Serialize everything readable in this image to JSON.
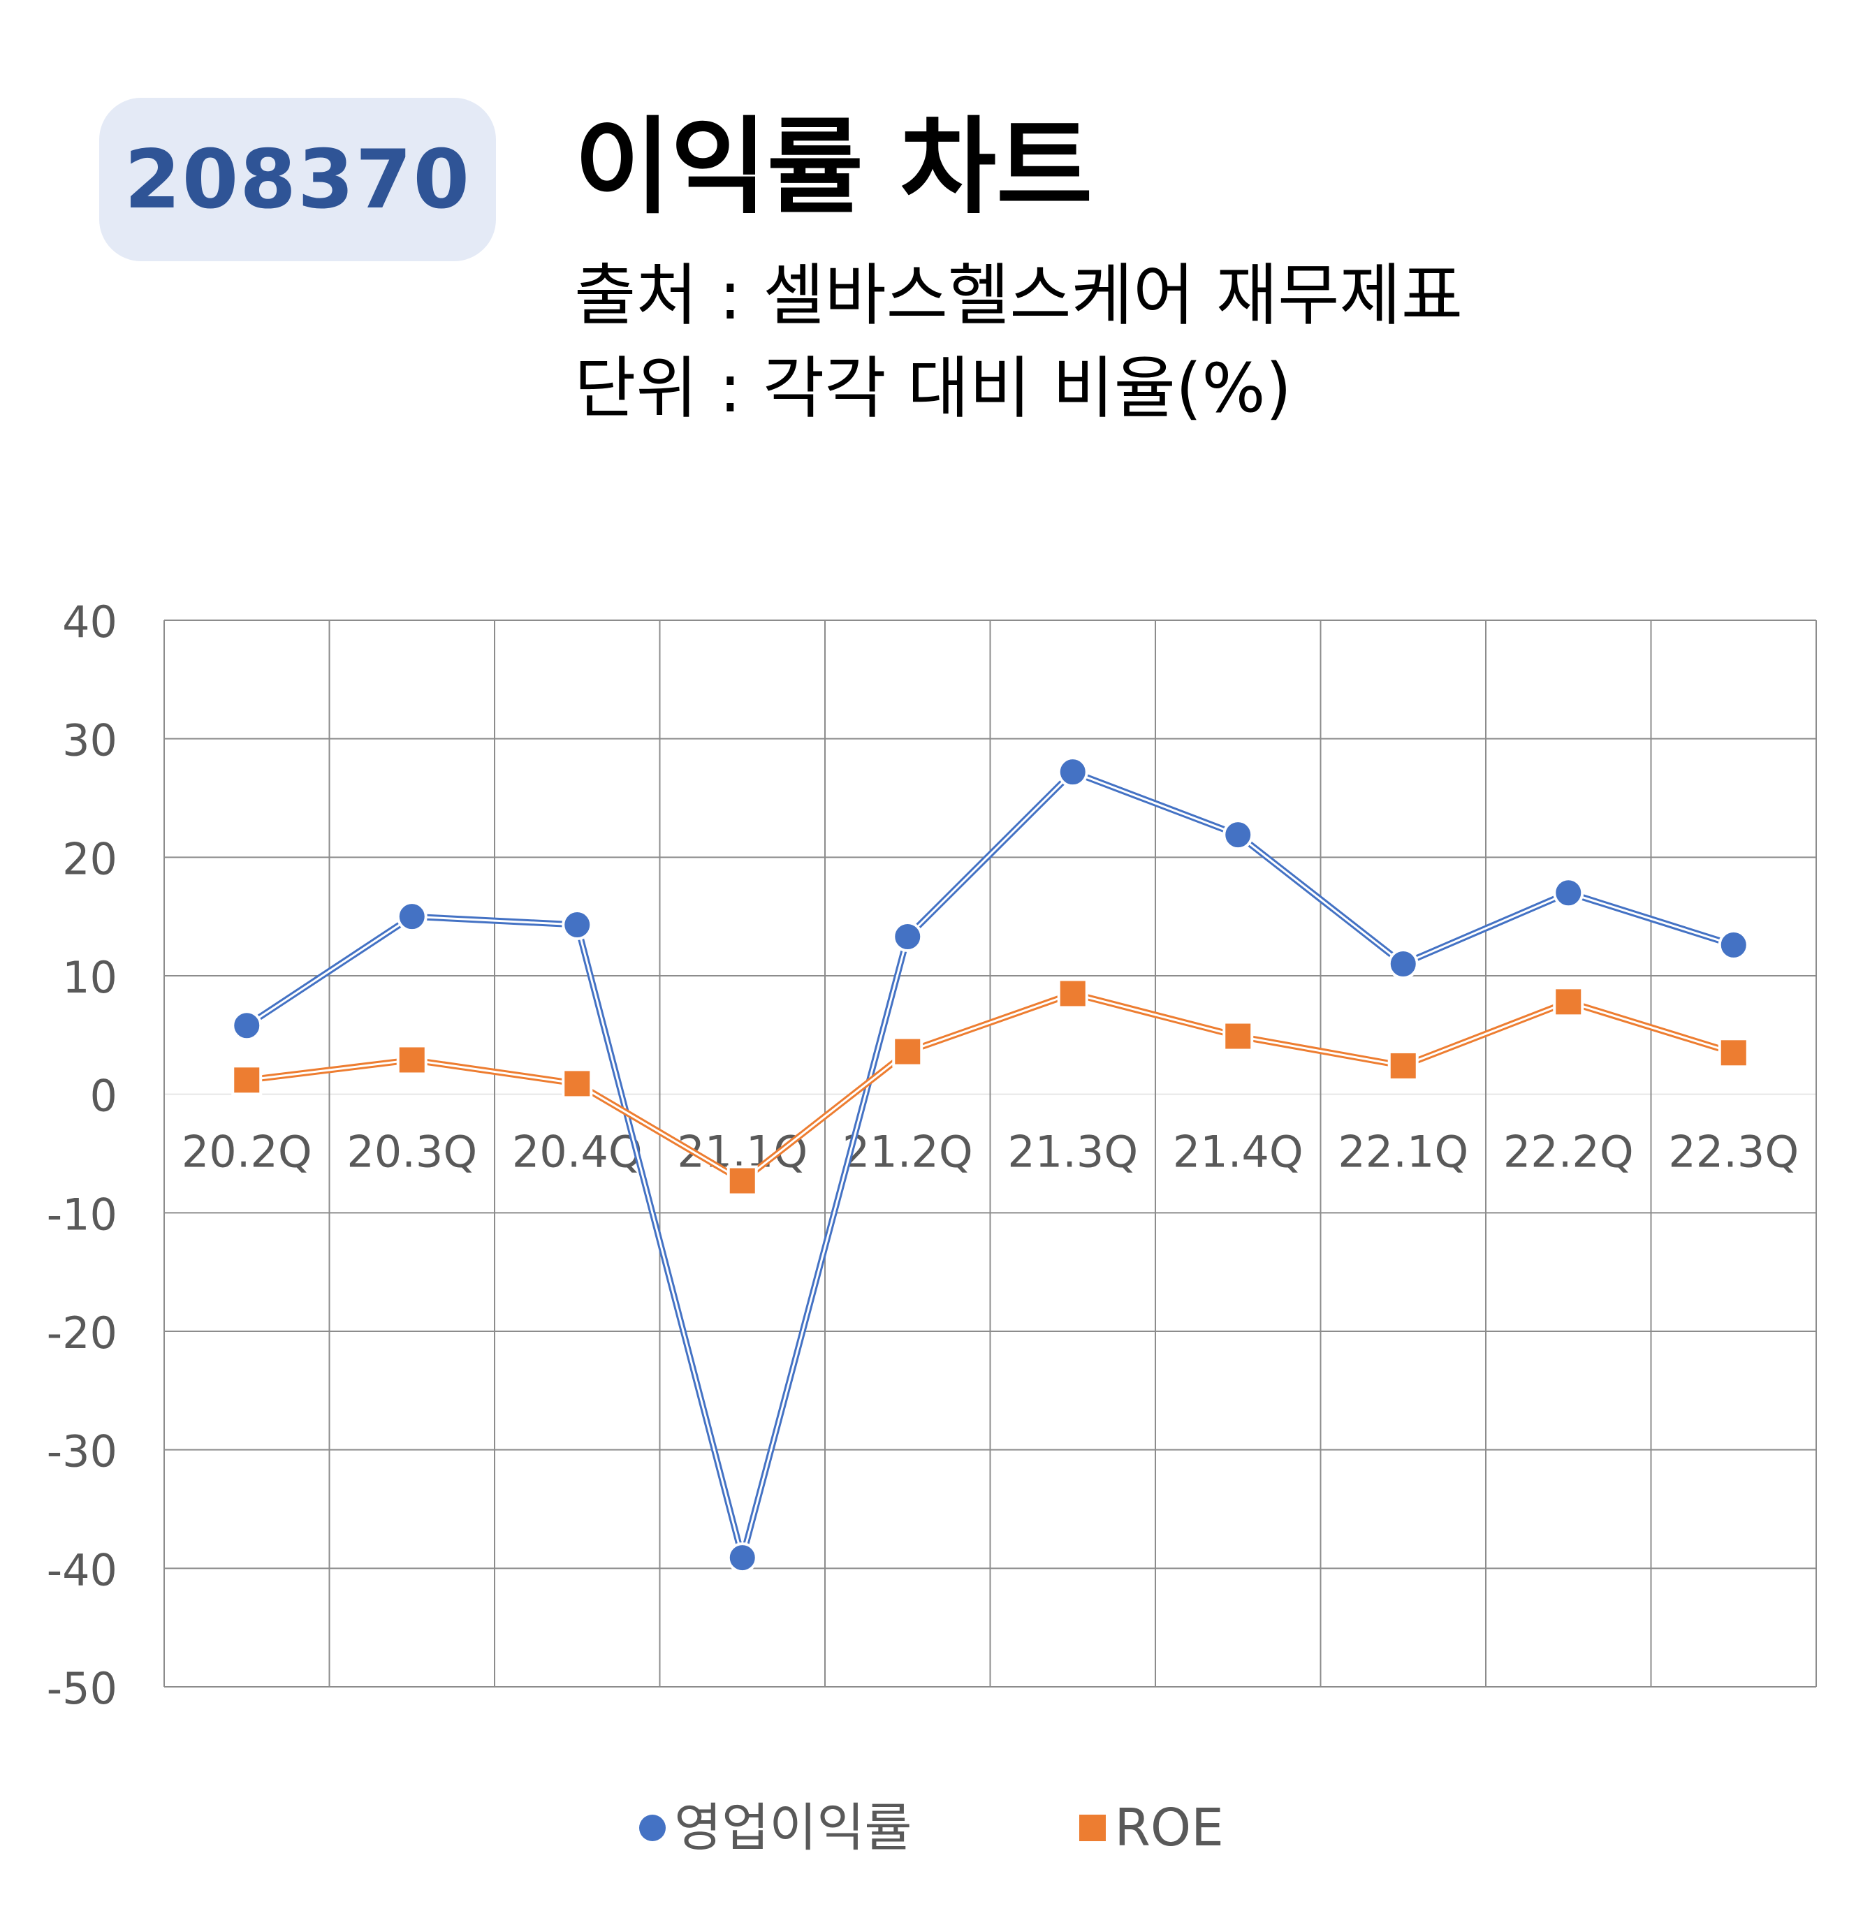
{
  "header": {
    "code": "208370",
    "title": "이익률 차트",
    "source": "출처 : 셀바스헬스케어 재무제표",
    "unit": "단위 : 각각 대비 비율(%)"
  },
  "chart_data": {
    "type": "line",
    "categories": [
      "20.2Q",
      "20.3Q",
      "20.4Q",
      "21.1Q",
      "21.2Q",
      "21.3Q",
      "21.4Q",
      "22.1Q",
      "22.2Q",
      "22.3Q"
    ],
    "series": [
      {
        "name": "영업이익률",
        "values": [
          5.8,
          15.0,
          14.3,
          -39.1,
          13.3,
          27.2,
          21.9,
          11.0,
          17.0,
          12.6
        ],
        "color": "#4472c4",
        "marker": "circle"
      },
      {
        "name": "ROE",
        "values": [
          1.2,
          2.9,
          0.9,
          -7.3,
          3.6,
          8.5,
          4.9,
          2.4,
          7.8,
          3.5
        ],
        "color": "#ed7d31",
        "marker": "square"
      }
    ],
    "ylim": [
      -50,
      40
    ],
    "yticks": [
      "40",
      "30",
      "20",
      "10",
      "0",
      "-10",
      "-20",
      "-30",
      "-40",
      "-50"
    ],
    "grid": true,
    "legend": "bottom"
  }
}
